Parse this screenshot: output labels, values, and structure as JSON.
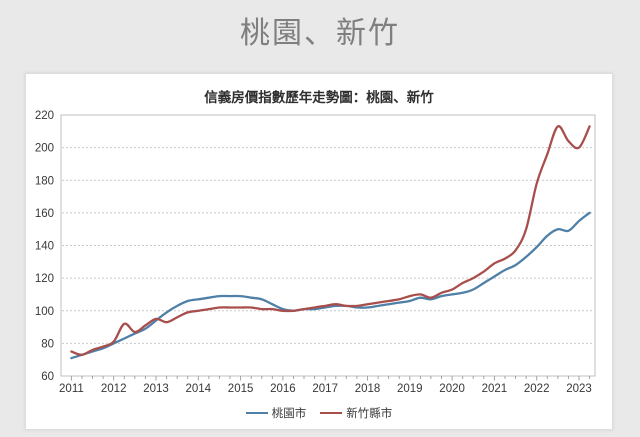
{
  "page": {
    "title": "桃園、新竹"
  },
  "chart_data": {
    "type": "line",
    "title": "信義房價指數歷年走勢圖：桃園、新竹",
    "xlabel": "",
    "ylabel": "",
    "ylim": [
      60,
      220
    ],
    "ytick_step": 20,
    "x_start": 2011,
    "x_step": 0.25,
    "x_tick_labels": [
      "2011",
      "2012",
      "2013",
      "2014",
      "2015",
      "2016",
      "2017",
      "2018",
      "2019",
      "2020",
      "2021",
      "2022",
      "2023"
    ],
    "grid": "horizontal-dashed",
    "legend_position": "bottom",
    "colors": {
      "taoyuan": "#4e80a8",
      "hsinchu": "#a84f4d",
      "gridline": "#c9c9c9",
      "plot_border": "#bfbfbf",
      "tick": "#9a9a9a",
      "tick_label": "#383838"
    },
    "series": [
      {
        "name": "桃園市",
        "color": "#4e80a8",
        "values": [
          71,
          73,
          75,
          77,
          80,
          83,
          86,
          89,
          94,
          99,
          103,
          106,
          107,
          108,
          109,
          109,
          109,
          108,
          107,
          104,
          101,
          100,
          101,
          101,
          102,
          103,
          103,
          102,
          102,
          103,
          104,
          105,
          106,
          108,
          107,
          109,
          110,
          111,
          113,
          117,
          121,
          125,
          128,
          133,
          139,
          146,
          150,
          149,
          155,
          160
        ]
      },
      {
        "name": "新竹縣市",
        "color": "#a84f4d",
        "values": [
          75,
          73,
          76,
          78,
          81,
          92,
          87,
          91,
          95,
          93,
          96,
          99,
          100,
          101,
          102,
          102,
          102,
          102,
          101,
          101,
          100,
          100,
          101,
          102,
          103,
          104,
          103,
          103,
          104,
          105,
          106,
          107,
          109,
          110,
          108,
          111,
          113,
          117,
          120,
          124,
          129,
          132,
          137,
          150,
          178,
          196,
          213,
          204,
          200,
          213
        ]
      }
    ]
  }
}
